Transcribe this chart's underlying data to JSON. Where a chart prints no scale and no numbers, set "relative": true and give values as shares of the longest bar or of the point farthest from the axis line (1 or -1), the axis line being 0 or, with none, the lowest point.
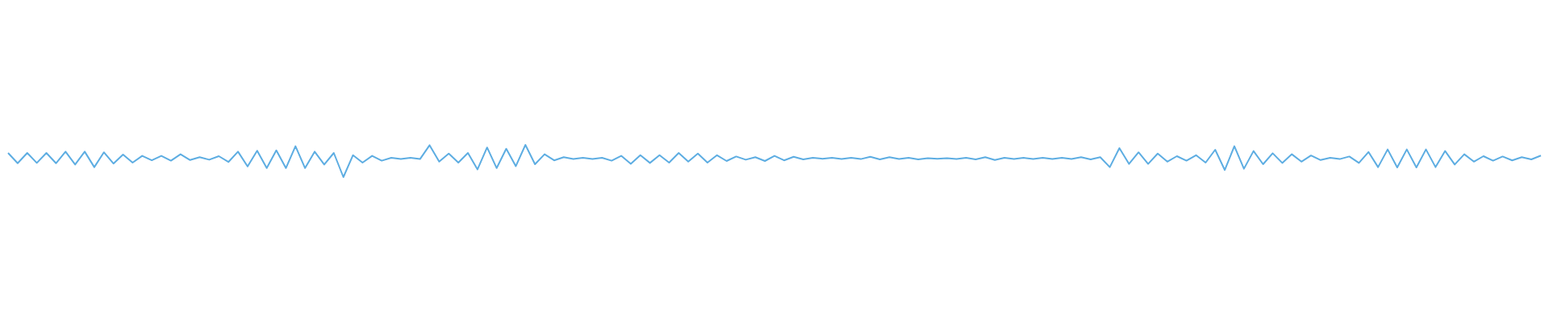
{
  "chart_data": {
    "type": "line",
    "relative": true,
    "marker": "none",
    "line_style": "solid",
    "grid": false,
    "legend": false,
    "tick_labels": false,
    "categories": [
      null,
      null,
      null,
      null,
      null,
      null,
      null,
      null,
      null,
      null,
      null,
      null,
      null,
      null,
      null,
      null,
      null,
      null,
      null,
      null,
      null,
      null,
      null,
      null,
      null,
      null,
      null,
      null,
      null,
      null,
      null,
      null,
      null,
      null,
      null,
      null,
      null,
      null,
      null,
      null,
      null,
      null,
      null,
      null,
      null,
      null,
      null,
      null,
      null,
      null,
      null,
      null,
      null,
      null,
      null,
      null,
      null,
      null,
      null,
      null,
      null,
      null,
      null,
      null,
      null,
      null,
      null,
      null,
      null,
      null,
      null,
      null,
      null,
      null,
      null,
      null,
      null,
      null,
      null,
      null,
      null,
      null,
      null,
      null,
      null,
      null,
      null,
      null,
      null,
      null,
      null,
      null,
      null,
      null,
      null,
      null,
      null,
      null,
      null,
      null,
      null,
      null,
      null,
      null,
      null,
      null,
      null,
      null,
      null,
      null,
      null,
      null,
      null,
      null,
      null,
      null,
      null,
      null,
      null,
      null,
      null,
      null,
      null,
      null,
      null,
      null,
      null,
      null,
      null,
      null,
      null,
      null,
      null,
      null,
      null,
      null,
      null,
      null,
      null,
      null,
      null,
      null,
      null,
      null,
      null,
      null,
      null,
      null,
      null,
      null,
      null,
      null,
      null,
      null,
      null,
      null,
      null,
      null,
      null,
      null,
      null
    ],
    "series": [
      {
        "color": "#5dade2",
        "values": [
          0.75,
          0.43,
          0.75,
          0.44,
          0.75,
          0.43,
          0.79,
          0.39,
          0.79,
          0.31,
          0.77,
          0.42,
          0.7,
          0.45,
          0.66,
          0.52,
          0.66,
          0.51,
          0.71,
          0.53,
          0.62,
          0.54,
          0.65,
          0.47,
          0.79,
          0.33,
          0.82,
          0.28,
          0.83,
          0.28,
          0.96,
          0.28,
          0.79,
          0.39,
          0.75,
          0,
          0.68,
          0.45,
          0.66,
          0.51,
          0.6,
          0.56,
          0.6,
          0.56,
          0.99,
          0.48,
          0.73,
          0.45,
          0.75,
          0.24,
          0.92,
          0.28,
          0.88,
          0.34,
          1.0,
          0.4,
          0.71,
          0.52,
          0.62,
          0.56,
          0.6,
          0.56,
          0.6,
          0.51,
          0.66,
          0.41,
          0.68,
          0.44,
          0.68,
          0.45,
          0.75,
          0.48,
          0.73,
          0.45,
          0.68,
          0.5,
          0.64,
          0.54,
          0.62,
          0.5,
          0.66,
          0.52,
          0.63,
          0.55,
          0.6,
          0.57,
          0.6,
          0.56,
          0.6,
          0.56,
          0.63,
          0.55,
          0.62,
          0.56,
          0.6,
          0.55,
          0.59,
          0.57,
          0.59,
          0.56,
          0.6,
          0.55,
          0.62,
          0.53,
          0.6,
          0.56,
          0.6,
          0.56,
          0.6,
          0.56,
          0.6,
          0.56,
          0.62,
          0.55,
          0.62,
          0.31,
          0.9,
          0.41,
          0.77,
          0.41,
          0.73,
          0.48,
          0.65,
          0.51,
          0.68,
          0.45,
          0.85,
          0.22,
          0.96,
          0.26,
          0.81,
          0.4,
          0.74,
          0.44,
          0.71,
          0.48,
          0.67,
          0.53,
          0.6,
          0.56,
          0.64,
          0.44,
          0.78,
          0.31,
          0.86,
          0.3,
          0.86,
          0.3,
          0.86,
          0.31,
          0.81,
          0.39,
          0.71,
          0.48,
          0.65,
          0.51,
          0.64,
          0.52,
          0.62,
          0.55,
          0.67
        ]
      }
    ]
  }
}
